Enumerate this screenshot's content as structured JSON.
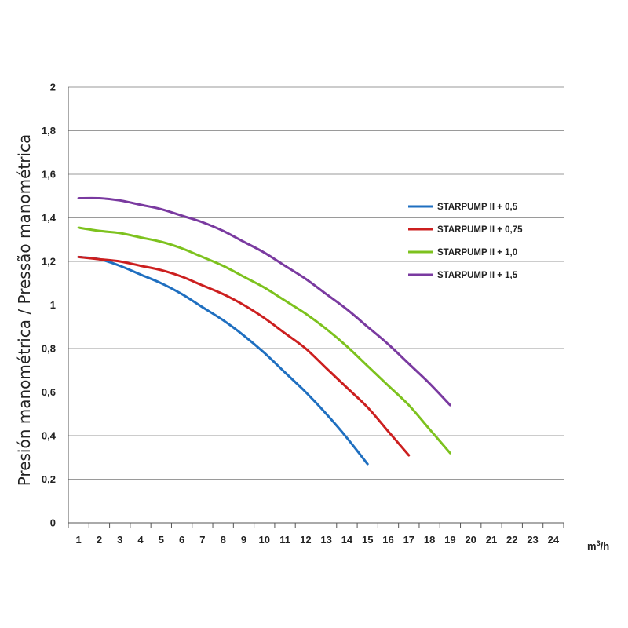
{
  "chart_data": {
    "type": "line",
    "xlabel_unit": "m3/h",
    "ylabel": "Presión manométrica / Pressão manométrica",
    "xlim": [
      0.5,
      24.5
    ],
    "ylim": [
      0,
      2
    ],
    "x_ticks": [
      "1",
      "2",
      "3",
      "4",
      "5",
      "6",
      "7",
      "8",
      "9",
      "10",
      "11",
      "12",
      "13",
      "14",
      "15",
      "16",
      "17",
      "18",
      "19",
      "20",
      "21",
      "22",
      "23",
      "24"
    ],
    "y_ticks": [
      "0",
      "0,2",
      "0,4",
      "0,6",
      "0,8",
      "1",
      "1,2",
      "1,4",
      "1,6",
      "1,8",
      "2"
    ],
    "grid": "horizontal",
    "legend_position": "right",
    "series": [
      {
        "name": "STARPUMP II + 0,5",
        "color": "#1f6fc0",
        "x": [
          1,
          2,
          3,
          4,
          5,
          6,
          7,
          8,
          9,
          10,
          11,
          12,
          13,
          14,
          15
        ],
        "values": [
          1.22,
          1.21,
          1.18,
          1.14,
          1.1,
          1.05,
          0.99,
          0.93,
          0.86,
          0.78,
          0.69,
          0.6,
          0.5,
          0.39,
          0.27
        ]
      },
      {
        "name": "STARPUMP II + 0,75",
        "color": "#cc1f1f",
        "x": [
          1,
          2,
          3,
          4,
          5,
          6,
          7,
          8,
          9,
          10,
          11,
          12,
          13,
          14,
          15,
          16,
          17
        ],
        "values": [
          1.22,
          1.21,
          1.2,
          1.18,
          1.16,
          1.13,
          1.09,
          1.05,
          1.0,
          0.94,
          0.87,
          0.8,
          0.71,
          0.62,
          0.53,
          0.42,
          0.31
        ]
      },
      {
        "name": "STARPUMP II + 1,0",
        "color": "#7dc21e",
        "x": [
          1,
          2,
          3,
          4,
          5,
          6,
          7,
          8,
          9,
          10,
          11,
          12,
          13,
          14,
          15,
          16,
          17,
          18,
          19
        ],
        "values": [
          1.355,
          1.34,
          1.33,
          1.31,
          1.29,
          1.26,
          1.22,
          1.18,
          1.13,
          1.08,
          1.02,
          0.96,
          0.89,
          0.81,
          0.72,
          0.63,
          0.54,
          0.43,
          0.32
        ]
      },
      {
        "name": "STARPUMP II + 1,5",
        "color": "#7a3aa0",
        "x": [
          1,
          2,
          3,
          4,
          5,
          6,
          7,
          8,
          9,
          10,
          11,
          12,
          13,
          14,
          15,
          16,
          17,
          18,
          19
        ],
        "values": [
          1.49,
          1.49,
          1.48,
          1.46,
          1.44,
          1.41,
          1.38,
          1.34,
          1.29,
          1.24,
          1.18,
          1.12,
          1.05,
          0.98,
          0.9,
          0.82,
          0.73,
          0.64,
          0.54
        ]
      }
    ]
  }
}
